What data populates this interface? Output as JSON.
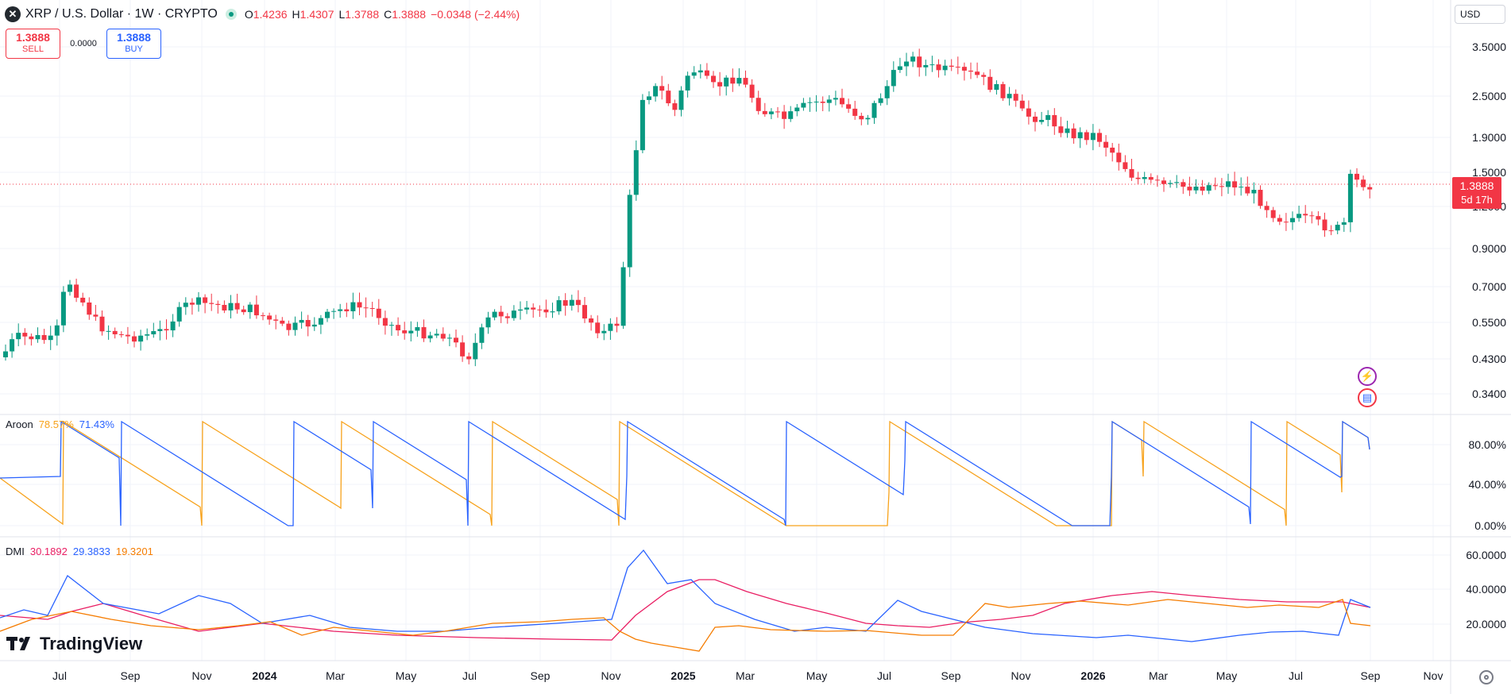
{
  "header": {
    "symbol_logo": "✕",
    "title": "XRP / U.S. Dollar · 1W · CRYPTO",
    "ohlc": [
      {
        "key": "O",
        "value": "1.4236"
      },
      {
        "key": "H",
        "value": "1.4307"
      },
      {
        "key": "L",
        "value": "1.3788"
      },
      {
        "key": "C",
        "value": "1.3888"
      },
      {
        "key": "",
        "value": "−0.0348 (−2.44%)"
      }
    ]
  },
  "trade": {
    "sell_price": "1.3888",
    "sell_label": "SELL",
    "spread": "0.0000",
    "buy_price": "1.3888",
    "buy_label": "BUY"
  },
  "currency": "USD",
  "last_price": {
    "value": "1.3888",
    "countdown": "5d 17h"
  },
  "price_axis": [
    "3.5000",
    "2.5000",
    "1.9000",
    "1.5000",
    "1.2000",
    "0.9000",
    "0.7000",
    "0.5500",
    "0.4300",
    "0.3400"
  ],
  "time_axis": [
    {
      "label": "Jul",
      "bold": false
    },
    {
      "label": "Sep",
      "bold": false
    },
    {
      "label": "Nov",
      "bold": false
    },
    {
      "label": "2024",
      "bold": true
    },
    {
      "label": "Mar",
      "bold": false
    },
    {
      "label": "May",
      "bold": false
    },
    {
      "label": "Jul",
      "bold": false
    },
    {
      "label": "Sep",
      "bold": false
    },
    {
      "label": "Nov",
      "bold": false
    },
    {
      "label": "2025",
      "bold": true
    },
    {
      "label": "Mar",
      "bold": false
    },
    {
      "label": "May",
      "bold": false
    },
    {
      "label": "Jul",
      "bold": false
    },
    {
      "label": "Sep",
      "bold": false
    },
    {
      "label": "Nov",
      "bold": false
    },
    {
      "label": "2026",
      "bold": true
    },
    {
      "label": "Mar",
      "bold": false
    },
    {
      "label": "May",
      "bold": false
    },
    {
      "label": "Jul",
      "bold": false
    },
    {
      "label": "Sep",
      "bold": false
    },
    {
      "label": "Nov",
      "bold": false
    }
  ],
  "aroon": {
    "name": "Aroon",
    "up": "78.57%",
    "down": "71.43%",
    "axis": [
      "80.00%",
      "40.00%",
      "0.00%"
    ],
    "colors": {
      "up": "#f7a21b",
      "down": "#2962ff"
    }
  },
  "dmi": {
    "name": "DMI",
    "plus": "30.1892",
    "minus": "29.3833",
    "adx": "19.3201",
    "axis": [
      "60.0000",
      "40.0000",
      "20.0000"
    ],
    "colors": {
      "plus": "#e91e63",
      "minus": "#2962ff",
      "adx": "#f57c00"
    }
  },
  "branding": "TradingView",
  "colors": {
    "up": "#089981",
    "down": "#f23645"
  }
}
